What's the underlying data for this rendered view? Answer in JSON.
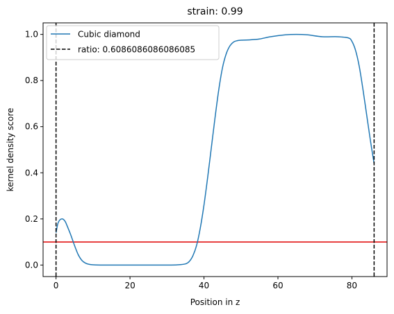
{
  "chart_data": {
    "type": "line",
    "title": "strain: 0.99",
    "xlabel": "Position in z",
    "ylabel": "kernel density score",
    "xlim": [
      -3.5,
      89.5
    ],
    "ylim": [
      -0.05,
      1.05
    ],
    "xticks": [
      0,
      20,
      40,
      60,
      80
    ],
    "xtick_labels": [
      "0",
      "20",
      "40",
      "60",
      "80"
    ],
    "yticks": [
      0.0,
      0.2,
      0.4,
      0.6,
      0.8,
      1.0
    ],
    "ytick_labels": [
      "0.0",
      "0.2",
      "0.4",
      "0.6",
      "0.8",
      "1.0"
    ],
    "grid": false,
    "legend_position": "upper-left",
    "series": [
      {
        "name": "Cubic diamond",
        "color": "#1f77b4",
        "style": "solid",
        "x": [
          0,
          0.5,
          1,
          1.5,
          2,
          2.5,
          3,
          4,
          5,
          6,
          7,
          8,
          9,
          10,
          12,
          15,
          20,
          25,
          30,
          33,
          35,
          36,
          37,
          38,
          39,
          40,
          41,
          42,
          43,
          44,
          45,
          46,
          47,
          48,
          49,
          50,
          52,
          55,
          58,
          62,
          65,
          68,
          72,
          76,
          79,
          80,
          81,
          82,
          83,
          84,
          85,
          86
        ],
        "y": [
          0.14,
          0.18,
          0.195,
          0.2,
          0.198,
          0.188,
          0.17,
          0.13,
          0.085,
          0.045,
          0.02,
          0.008,
          0.003,
          0.001,
          0,
          0,
          0,
          0,
          0.0,
          0.001,
          0.005,
          0.015,
          0.04,
          0.085,
          0.16,
          0.26,
          0.38,
          0.51,
          0.64,
          0.76,
          0.855,
          0.915,
          0.95,
          0.967,
          0.973,
          0.975,
          0.976,
          0.98,
          0.99,
          0.998,
          1.0,
          0.998,
          0.99,
          0.99,
          0.985,
          0.97,
          0.93,
          0.86,
          0.76,
          0.65,
          0.54,
          0.44
        ]
      },
      {
        "name": "ratio: 0.6086086086086085",
        "color": "#000000",
        "style": "dashed",
        "vlines_x": [
          0,
          86
        ]
      }
    ],
    "hline": {
      "y": 0.1,
      "color": "#e00000"
    }
  }
}
